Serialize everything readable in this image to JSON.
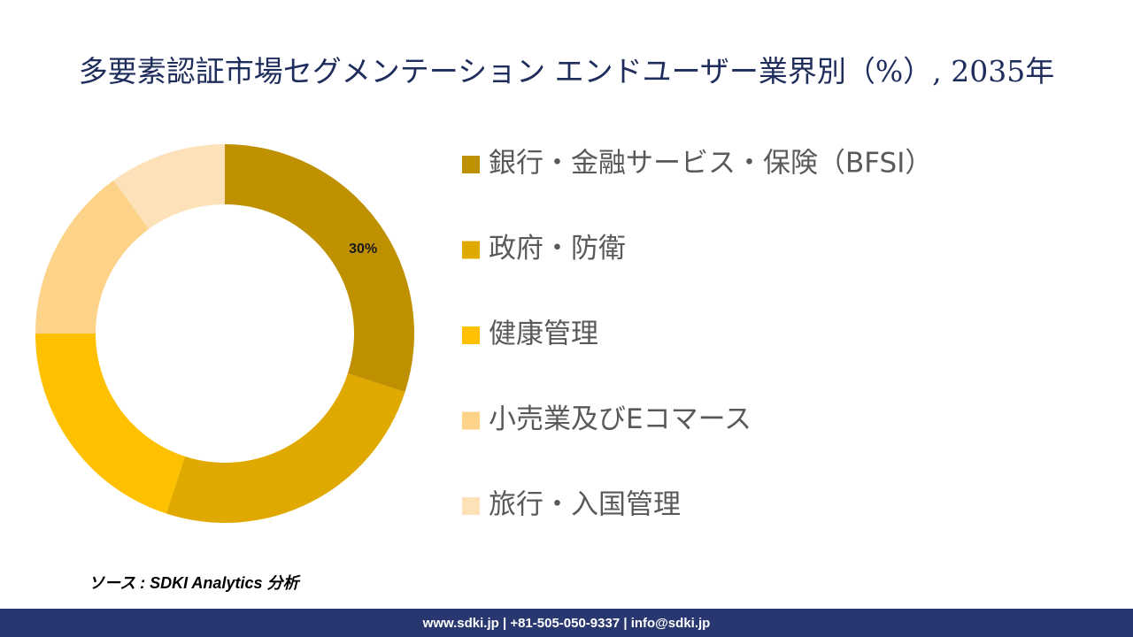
{
  "chart_data": {
    "type": "donut",
    "title": "多要素認証市場セグメンテーション エンドユーザー業界別（%）, 2035年",
    "categories": [
      "銀行・金融サービス・保険（BFSI）",
      "政府・防衛",
      "健康管理",
      "小売業及びEコマース",
      "旅行・入国管理"
    ],
    "values": [
      30,
      25,
      20,
      15,
      10
    ],
    "value_labels": [
      "30%",
      null,
      null,
      null,
      null
    ],
    "colors": [
      "#bf9000",
      "#e0a900",
      "#ffc000",
      "#fdd38a",
      "#fde2b9"
    ],
    "legend": "right"
  },
  "source": "ソース : SDKI Analytics 分析",
  "footer": "www.sdki.jp | +81-505-050-9337 | info@sdki.jp"
}
